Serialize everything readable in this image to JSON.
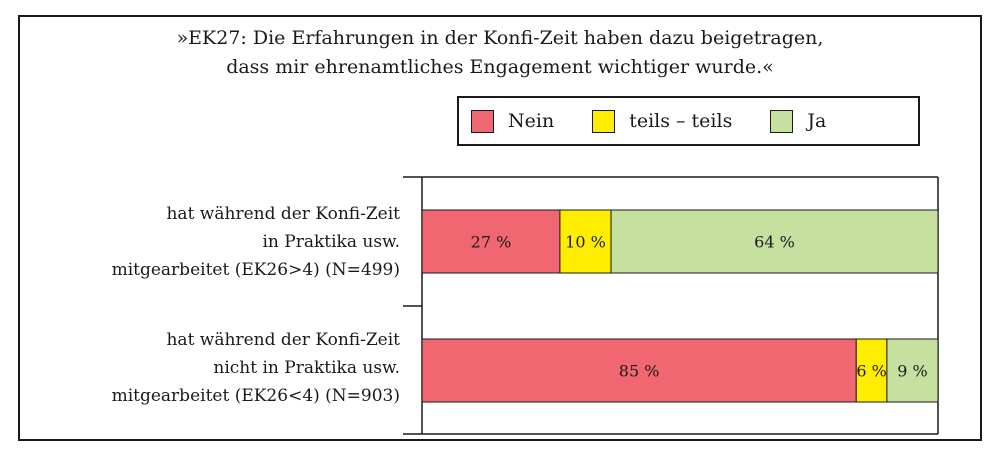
{
  "chart_data": {
    "type": "bar",
    "orientation": "horizontal",
    "stacked": true,
    "title_lines": [
      "»EK27: Die Erfahrungen in der Konfi-Zeit haben dazu beigetragen,",
      "dass mir ehrenamtliches Engagement wichtiger wurde.«"
    ],
    "categories": [
      {
        "lines": [
          "hat während der Konfi-Zeit",
          "in Praktika usw.",
          "mitgearbeitet (EK26>4) (N=499)"
        ]
      },
      {
        "lines": [
          "hat während der Konfi-Zeit",
          "nicht in Praktika usw.",
          "mitgearbeitet (EK26<4) (N=903)"
        ]
      }
    ],
    "series": [
      {
        "name": "Nein",
        "color": "#f06771",
        "values": [
          27,
          85
        ],
        "labels": [
          "27 %",
          "85 %"
        ]
      },
      {
        "name": "teils – teils",
        "color": "#ffed00",
        "values": [
          10,
          6
        ],
        "labels": [
          "10 %",
          "6 %"
        ]
      },
      {
        "name": "Ja",
        "color": "#c6e0a0",
        "values": [
          64,
          9
        ],
        "labels": [
          "64 %",
          "9 %"
        ]
      }
    ],
    "xlim": [
      0,
      101
    ],
    "legend_position": "top-right",
    "grid": false
  }
}
